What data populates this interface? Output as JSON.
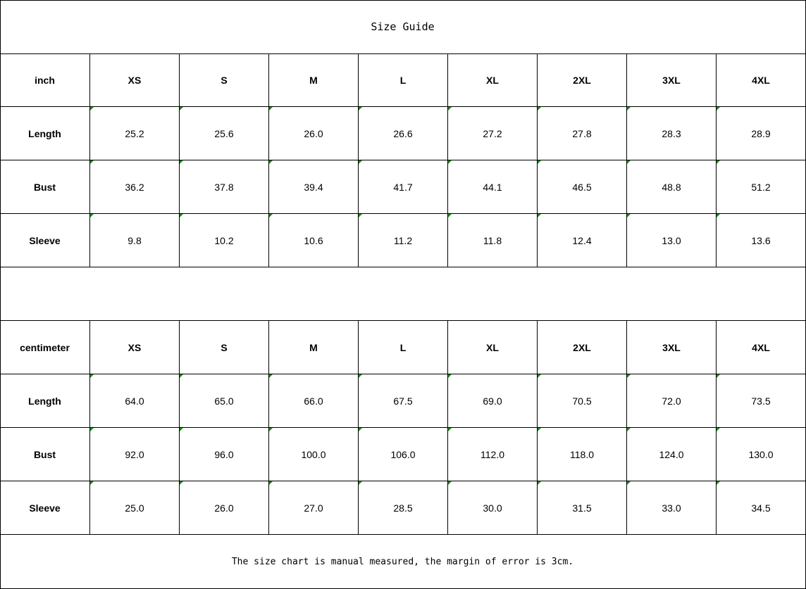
{
  "title": "Size Guide",
  "sizes": [
    "XS",
    "S",
    "M",
    "L",
    "XL",
    "2XL",
    "3XL",
    "4XL"
  ],
  "tables": [
    {
      "unit": "inch",
      "rows": [
        {
          "label": "Length",
          "values": [
            "25.2",
            "25.6",
            "26.0",
            "26.6",
            "27.2",
            "27.8",
            "28.3",
            "28.9"
          ]
        },
        {
          "label": "Bust",
          "values": [
            "36.2",
            "37.8",
            "39.4",
            "41.7",
            "44.1",
            "46.5",
            "48.8",
            "51.2"
          ]
        },
        {
          "label": "Sleeve",
          "values": [
            "9.8",
            "10.2",
            "10.6",
            "11.2",
            "11.8",
            "12.4",
            "13.0",
            "13.6"
          ]
        }
      ]
    },
    {
      "unit": "centimeter",
      "rows": [
        {
          "label": "Length",
          "values": [
            "64.0",
            "65.0",
            "66.0",
            "67.5",
            "69.0",
            "70.5",
            "72.0",
            "73.5"
          ]
        },
        {
          "label": "Bust",
          "values": [
            "92.0",
            "96.0",
            "100.0",
            "106.0",
            "112.0",
            "118.0",
            "124.0",
            "130.0"
          ]
        },
        {
          "label": "Sleeve",
          "values": [
            "25.0",
            "26.0",
            "27.0",
            "28.5",
            "30.0",
            "31.5",
            "33.0",
            "34.5"
          ]
        }
      ]
    }
  ],
  "note": "The size chart is manual measured, the margin of error is 3cm.",
  "colors": {
    "border": "#000000",
    "number_marker": "#1a8a1a"
  }
}
